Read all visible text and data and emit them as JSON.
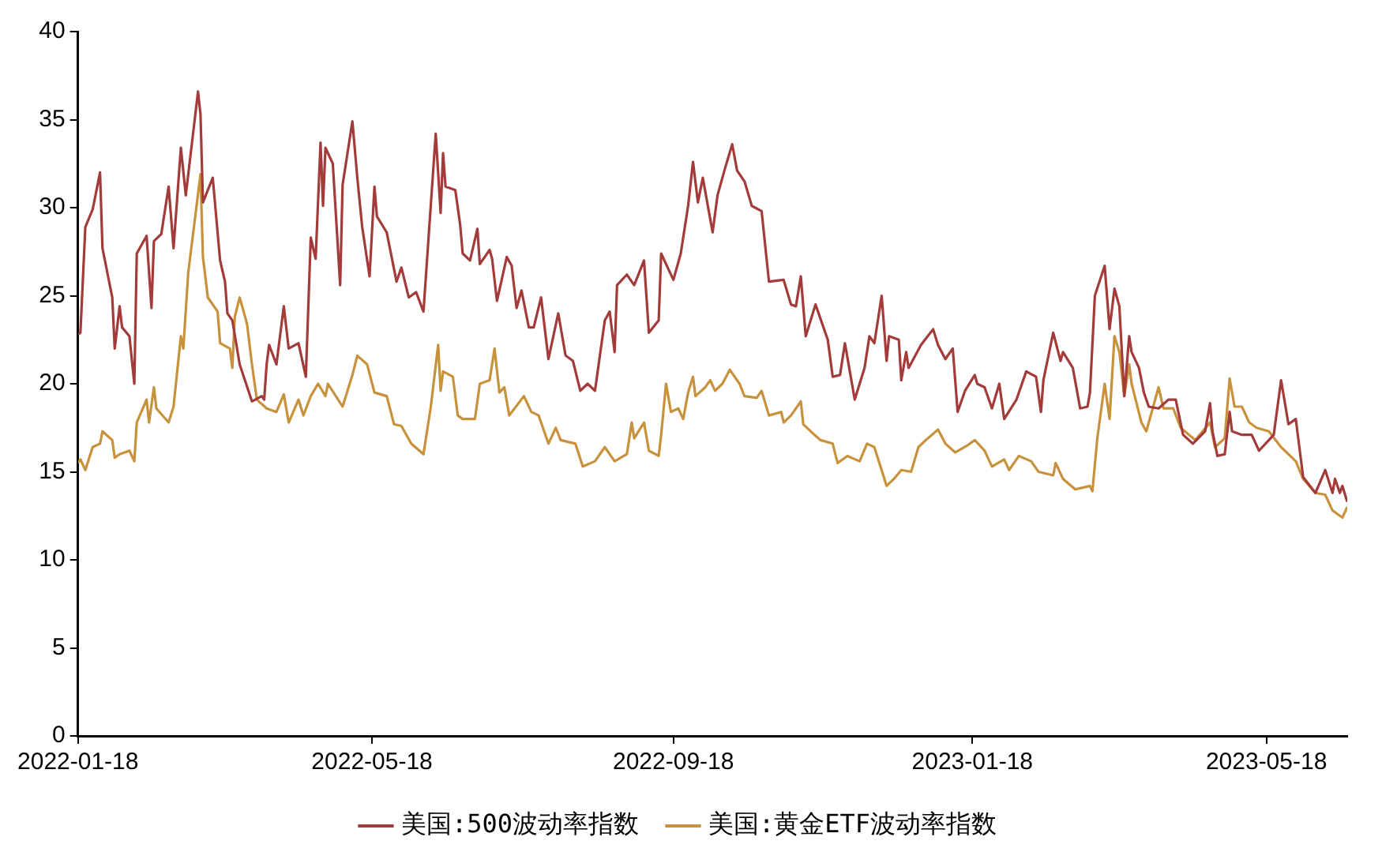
{
  "chart_data": {
    "type": "line",
    "xlim": [
      "2022-01-18",
      "2023-06-20"
    ],
    "xticks": [
      "2022-01-18",
      "2022-05-18",
      "2022-09-18",
      "2023-01-18",
      "2023-05-18"
    ],
    "ylim": [
      0,
      40
    ],
    "yticks": [
      0,
      5,
      10,
      15,
      20,
      25,
      30,
      35,
      40
    ],
    "grid": false,
    "legend": "bottom",
    "marker": "none",
    "line_style": "solid",
    "series": [
      {
        "name": "美国:500波动率指数",
        "color": "#a33b3b",
        "x": [
          "2022-01-18",
          "2022-01-19",
          "2022-01-21",
          "2022-01-24",
          "2022-01-27",
          "2022-01-28",
          "2022-02-01",
          "2022-02-02",
          "2022-02-04",
          "2022-02-05",
          "2022-02-08",
          "2022-02-10",
          "2022-02-11",
          "2022-02-15",
          "2022-02-17",
          "2022-02-18",
          "2022-02-21",
          "2022-02-24",
          "2022-02-26",
          "2022-03-01",
          "2022-03-03",
          "2022-03-08",
          "2022-03-09",
          "2022-03-10",
          "2022-03-14",
          "2022-03-17",
          "2022-03-19",
          "2022-03-20",
          "2022-03-22",
          "2022-03-25",
          "2022-03-30",
          "2022-04-03",
          "2022-04-04",
          "2022-04-05",
          "2022-04-06",
          "2022-04-09",
          "2022-04-12",
          "2022-04-14",
          "2022-04-18",
          "2022-04-21",
          "2022-04-23",
          "2022-04-25",
          "2022-04-27",
          "2022-04-28",
          "2022-04-29",
          "2022-05-02",
          "2022-05-05",
          "2022-05-06",
          "2022-05-10",
          "2022-05-12",
          "2022-05-14",
          "2022-05-17",
          "2022-05-19",
          "2022-05-20",
          "2022-05-24",
          "2022-05-28",
          "2022-05-30",
          "2022-06-02",
          "2022-06-05",
          "2022-06-08",
          "2022-06-13",
          "2022-06-15",
          "2022-06-16",
          "2022-06-17",
          "2022-06-21",
          "2022-06-23",
          "2022-06-24",
          "2022-06-27",
          "2022-06-30",
          "2022-07-01",
          "2022-07-05",
          "2022-07-06",
          "2022-07-08",
          "2022-07-12",
          "2022-07-14",
          "2022-07-16",
          "2022-07-18",
          "2022-07-21",
          "2022-07-23",
          "2022-07-26",
          "2022-07-29",
          "2022-08-02",
          "2022-08-05",
          "2022-08-08",
          "2022-08-11",
          "2022-08-14",
          "2022-08-17",
          "2022-08-21",
          "2022-08-23",
          "2022-08-25",
          "2022-08-26",
          "2022-08-30",
          "2022-09-02",
          "2022-09-06",
          "2022-09-08",
          "2022-09-12",
          "2022-09-13",
          "2022-09-16",
          "2022-09-18",
          "2022-09-21",
          "2022-09-24",
          "2022-09-26",
          "2022-09-28",
          "2022-09-30",
          "2022-10-04",
          "2022-10-06",
          "2022-10-09",
          "2022-10-12",
          "2022-10-14",
          "2022-10-17",
          "2022-10-20",
          "2022-10-24",
          "2022-10-27",
          "2022-11-02",
          "2022-11-05",
          "2022-11-07",
          "2022-11-09",
          "2022-11-11",
          "2022-11-15",
          "2022-11-20",
          "2022-11-22",
          "2022-11-25",
          "2022-11-27",
          "2022-12-01",
          "2022-12-05",
          "2022-12-07",
          "2022-12-09",
          "2022-12-12",
          "2022-12-14",
          "2022-12-15",
          "2022-12-19",
          "2022-12-20",
          "2022-12-22",
          "2022-12-23",
          "2022-12-28",
          "2023-01-02",
          "2023-01-04",
          "2023-01-07",
          "2023-01-10",
          "2023-01-12",
          "2023-01-15",
          "2023-01-19",
          "2023-01-20",
          "2023-01-23",
          "2023-01-26",
          "2023-01-29",
          "2023-01-31",
          "2023-02-05",
          "2023-02-09",
          "2023-02-13",
          "2023-02-15",
          "2023-02-16",
          "2023-02-20",
          "2023-02-23",
          "2023-02-24",
          "2023-02-28",
          "2023-03-03",
          "2023-03-06",
          "2023-03-07",
          "2023-03-09",
          "2023-03-13",
          "2023-03-15",
          "2023-03-17",
          "2023-03-19",
          "2023-03-21",
          "2023-03-23",
          "2023-03-24",
          "2023-03-27",
          "2023-03-29",
          "2023-03-31",
          "2023-04-04",
          "2023-04-08",
          "2023-04-11",
          "2023-04-14",
          "2023-04-18",
          "2023-04-23",
          "2023-04-25",
          "2023-04-26",
          "2023-04-28",
          "2023-05-01",
          "2023-05-03",
          "2023-05-04",
          "2023-05-08",
          "2023-05-12",
          "2023-05-15",
          "2023-05-21",
          "2023-05-24",
          "2023-05-27",
          "2023-05-30",
          "2023-06-02",
          "2023-06-07",
          "2023-06-11",
          "2023-06-14",
          "2023-06-15",
          "2023-06-17",
          "2023-06-18",
          "2023-06-20"
        ],
        "values": [
          22.8,
          22.9,
          28.9,
          29.9,
          32.0,
          27.7,
          24.9,
          22.0,
          24.4,
          23.2,
          22.7,
          20.0,
          27.4,
          28.4,
          24.3,
          28.1,
          28.5,
          31.2,
          27.7,
          33.4,
          30.7,
          36.6,
          35.3,
          30.3,
          31.7,
          27.0,
          25.8,
          24.0,
          23.6,
          21.1,
          19.0,
          19.3,
          19.1,
          21.1,
          22.2,
          21.1,
          24.4,
          22.0,
          22.3,
          20.4,
          28.3,
          27.1,
          33.7,
          30.1,
          33.4,
          32.5,
          25.6,
          31.3,
          34.9,
          31.7,
          28.9,
          26.1,
          31.2,
          29.5,
          28.6,
          25.8,
          26.6,
          24.9,
          25.2,
          24.1,
          34.2,
          29.7,
          33.1,
          31.2,
          31.0,
          29.0,
          27.4,
          27.0,
          28.8,
          26.8,
          27.6,
          27.1,
          24.7,
          27.2,
          26.7,
          24.3,
          25.3,
          23.2,
          23.2,
          24.9,
          21.4,
          24.0,
          21.6,
          21.3,
          19.6,
          20.0,
          19.6,
          23.6,
          24.1,
          21.8,
          25.6,
          26.2,
          25.6,
          27.0,
          22.9,
          23.6,
          27.4,
          26.5,
          25.9,
          27.4,
          30.1,
          32.6,
          30.3,
          31.7,
          28.6,
          30.7,
          32.2,
          33.6,
          32.1,
          31.5,
          30.1,
          29.8,
          25.8,
          25.9,
          24.5,
          24.4,
          26.1,
          22.7,
          24.5,
          22.5,
          20.4,
          20.5,
          22.3,
          19.1,
          20.9,
          22.7,
          22.3,
          25.0,
          21.3,
          22.7,
          22.5,
          20.2,
          21.8,
          20.9,
          22.2,
          23.1,
          22.2,
          21.4,
          22.0,
          18.4,
          19.6,
          20.5,
          20.0,
          19.8,
          18.6,
          20.0,
          18.0,
          19.1,
          20.7,
          20.4,
          18.4,
          20.2,
          22.9,
          21.3,
          21.8,
          20.9,
          18.6,
          18.7,
          19.5,
          25.0,
          26.7,
          23.1,
          25.4,
          24.4,
          19.3,
          22.7,
          21.8,
          20.9,
          19.5,
          18.7,
          18.6,
          19.1,
          19.1,
          17.1,
          16.6,
          17.3,
          18.9,
          17.3,
          15.9,
          16.0,
          18.4,
          17.3,
          17.1,
          17.1,
          16.2,
          17.1,
          20.2,
          17.7,
          18.0,
          14.7,
          13.8,
          15.1,
          13.8,
          14.6,
          13.8,
          14.2,
          13.3
        ]
      },
      {
        "name": "美国:黄金ETF波动率指数",
        "color": "#c8923c",
        "x": [
          "2022-01-18",
          "2022-01-19",
          "2022-01-21",
          "2022-01-24",
          "2022-01-27",
          "2022-01-28",
          "2022-02-01",
          "2022-02-02",
          "2022-02-04",
          "2022-02-08",
          "2022-02-10",
          "2022-02-11",
          "2022-02-15",
          "2022-02-16",
          "2022-02-18",
          "2022-02-19",
          "2022-02-24",
          "2022-02-26",
          "2022-03-01",
          "2022-03-02",
          "2022-03-04",
          "2022-03-09",
          "2022-03-10",
          "2022-03-12",
          "2022-03-16",
          "2022-03-17",
          "2022-03-21",
          "2022-03-22",
          "2022-03-23",
          "2022-03-25",
          "2022-03-28",
          "2022-03-30",
          "2022-04-01",
          "2022-04-05",
          "2022-04-09",
          "2022-04-12",
          "2022-04-14",
          "2022-04-18",
          "2022-04-20",
          "2022-04-23",
          "2022-04-26",
          "2022-04-29",
          "2022-04-30",
          "2022-05-06",
          "2022-05-10",
          "2022-05-12",
          "2022-05-16",
          "2022-05-19",
          "2022-05-24",
          "2022-05-27",
          "2022-05-30",
          "2022-06-03",
          "2022-06-08",
          "2022-06-11",
          "2022-06-14",
          "2022-06-15",
          "2022-06-16",
          "2022-06-20",
          "2022-06-22",
          "2022-06-24",
          "2022-06-29",
          "2022-07-01",
          "2022-07-05",
          "2022-07-07",
          "2022-07-09",
          "2022-07-11",
          "2022-07-13",
          "2022-07-19",
          "2022-07-22",
          "2022-07-25",
          "2022-07-29",
          "2022-08-01",
          "2022-08-03",
          "2022-08-09",
          "2022-08-12",
          "2022-08-17",
          "2022-08-21",
          "2022-08-25",
          "2022-08-30",
          "2022-09-01",
          "2022-09-02",
          "2022-09-06",
          "2022-09-08",
          "2022-09-12",
          "2022-09-13",
          "2022-09-15",
          "2022-09-17",
          "2022-09-20",
          "2022-09-22",
          "2022-09-24",
          "2022-09-26",
          "2022-09-27",
          "2022-10-01",
          "2022-10-03",
          "2022-10-05",
          "2022-10-08",
          "2022-10-11",
          "2022-10-15",
          "2022-10-17",
          "2022-10-22",
          "2022-10-24",
          "2022-10-27",
          "2022-11-01",
          "2022-11-02",
          "2022-11-05",
          "2022-11-09",
          "2022-11-10",
          "2022-11-13",
          "2022-11-17",
          "2022-11-22",
          "2022-11-24",
          "2022-11-28",
          "2022-12-03",
          "2022-12-06",
          "2022-12-09",
          "2022-12-14",
          "2022-12-17",
          "2022-12-20",
          "2022-12-24",
          "2022-12-27",
          "2022-12-30",
          "2023-01-04",
          "2023-01-07",
          "2023-01-11",
          "2023-01-16",
          "2023-01-19",
          "2023-01-23",
          "2023-01-26",
          "2023-01-31",
          "2023-02-02",
          "2023-02-06",
          "2023-02-11",
          "2023-02-14",
          "2023-02-20",
          "2023-02-21",
          "2023-02-24",
          "2023-03-01",
          "2023-03-07",
          "2023-03-08",
          "2023-03-10",
          "2023-03-13",
          "2023-03-15",
          "2023-03-17",
          "2023-03-19",
          "2023-03-21",
          "2023-03-23",
          "2023-03-24",
          "2023-03-28",
          "2023-03-30",
          "2023-04-04",
          "2023-04-06",
          "2023-04-10",
          "2023-04-13",
          "2023-04-19",
          "2023-04-25",
          "2023-04-27",
          "2023-05-01",
          "2023-05-03",
          "2023-05-05",
          "2023-05-08",
          "2023-05-11",
          "2023-05-14",
          "2023-05-19",
          "2023-05-24",
          "2023-05-30",
          "2023-06-02",
          "2023-06-07",
          "2023-06-11",
          "2023-06-14",
          "2023-06-18",
          "2023-06-20"
        ],
        "values": [
          15.5,
          15.7,
          15.1,
          16.4,
          16.6,
          17.3,
          16.8,
          15.8,
          16.0,
          16.2,
          15.6,
          17.8,
          19.1,
          17.8,
          19.8,
          18.6,
          17.8,
          18.7,
          22.7,
          22.0,
          26.3,
          31.9,
          27.2,
          24.9,
          24.1,
          22.3,
          22.0,
          20.9,
          23.8,
          24.9,
          23.4,
          21.1,
          19.1,
          18.6,
          18.4,
          19.4,
          17.8,
          19.1,
          18.2,
          19.3,
          20.0,
          19.3,
          20.0,
          18.7,
          20.5,
          21.6,
          21.1,
          19.5,
          19.3,
          17.7,
          17.6,
          16.6,
          16.0,
          18.7,
          22.2,
          19.6,
          20.7,
          20.4,
          18.2,
          18.0,
          18.0,
          20.0,
          20.2,
          22.0,
          19.5,
          19.8,
          18.2,
          19.3,
          18.4,
          18.2,
          16.6,
          17.5,
          16.8,
          16.6,
          15.3,
          15.6,
          16.4,
          15.6,
          16.0,
          17.8,
          16.9,
          17.8,
          16.2,
          15.9,
          17.1,
          20.0,
          18.4,
          18.6,
          18.0,
          19.5,
          20.4,
          19.3,
          19.8,
          20.2,
          19.6,
          20.0,
          20.8,
          20.0,
          19.3,
          19.2,
          19.6,
          18.2,
          18.4,
          17.8,
          18.2,
          19.0,
          17.7,
          17.3,
          16.8,
          16.6,
          15.5,
          15.9,
          15.6,
          16.6,
          16.4,
          14.2,
          14.6,
          15.1,
          15.0,
          16.4,
          16.8,
          17.4,
          16.6,
          16.1,
          16.5,
          16.8,
          16.2,
          15.3,
          15.7,
          15.1,
          15.9,
          15.6,
          15.0,
          14.8,
          15.5,
          14.6,
          14.0,
          14.2,
          13.9,
          16.9,
          20.0,
          18.0,
          22.7,
          21.8,
          19.3,
          21.1,
          20.0,
          17.8,
          17.3,
          19.8,
          18.6,
          18.6,
          17.5,
          16.8,
          17.8,
          16.4,
          16.9,
          20.3,
          18.7,
          18.7,
          17.8,
          17.5,
          17.3,
          16.4,
          15.6,
          14.6,
          13.8,
          13.7,
          12.8,
          12.4,
          13.0
        ]
      }
    ]
  }
}
